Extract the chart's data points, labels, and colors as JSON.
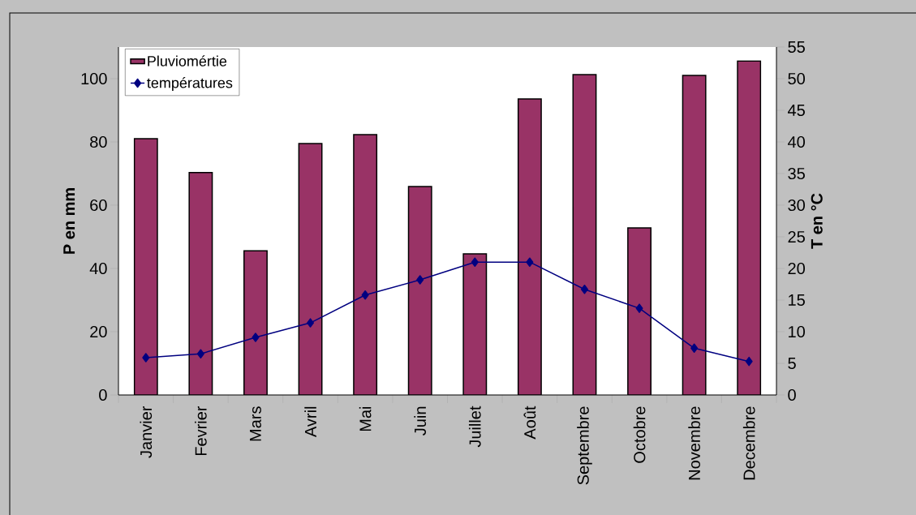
{
  "chart_data": {
    "type": "bar",
    "ylabel": "P en mm",
    "y2label": "T en °C",
    "categories": [
      "Janvier",
      "Fevrier",
      "Mars",
      "Avril",
      "Mai",
      "Juin",
      "Juillet",
      "Août",
      "Septembre",
      "Octobre",
      "Novembre",
      "Decembre"
    ],
    "series": [
      {
        "name": "Pluviomértie",
        "color": "#993366",
        "values": [
          81,
          70.3,
          45.6,
          79.5,
          82.3,
          65.9,
          44.6,
          93.6,
          101.3,
          52.8,
          101,
          105.6
        ]
      },
      {
        "name": "températures",
        "type": "line",
        "axis": "y2",
        "color": "#000080",
        "marker": "diamond",
        "values": [
          5.9,
          6.5,
          9.1,
          11.4,
          15.8,
          18.2,
          21.0,
          21.0,
          16.7,
          13.7,
          7.4,
          5.3
        ]
      }
    ],
    "ylim": [
      0,
      110
    ],
    "yticks": [
      0,
      20,
      40,
      60,
      80,
      100
    ],
    "y2lim": [
      0,
      55
    ],
    "y2ticks": [
      0,
      5,
      10,
      15,
      20,
      25,
      30,
      35,
      40,
      45,
      50,
      55
    ],
    "legend": "top left",
    "grid": false
  }
}
